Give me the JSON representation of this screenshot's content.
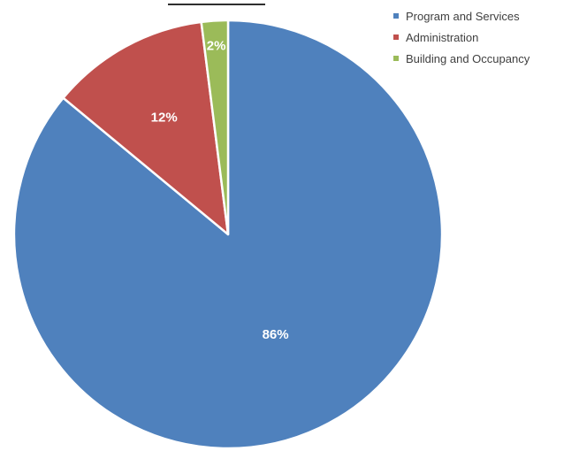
{
  "chart_data": {
    "type": "pie",
    "title": "",
    "slices": [
      {
        "label": "Program and Services",
        "value": 86,
        "data_label": "86%",
        "color": "#4F81BD"
      },
      {
        "label": "Administration",
        "value": 12,
        "data_label": "12%",
        "color": "#C0504D"
      },
      {
        "label": "Building and Occupancy",
        "value": 2,
        "data_label": "2%",
        "color": "#9BBB59"
      }
    ],
    "legend_position": "top-right"
  }
}
